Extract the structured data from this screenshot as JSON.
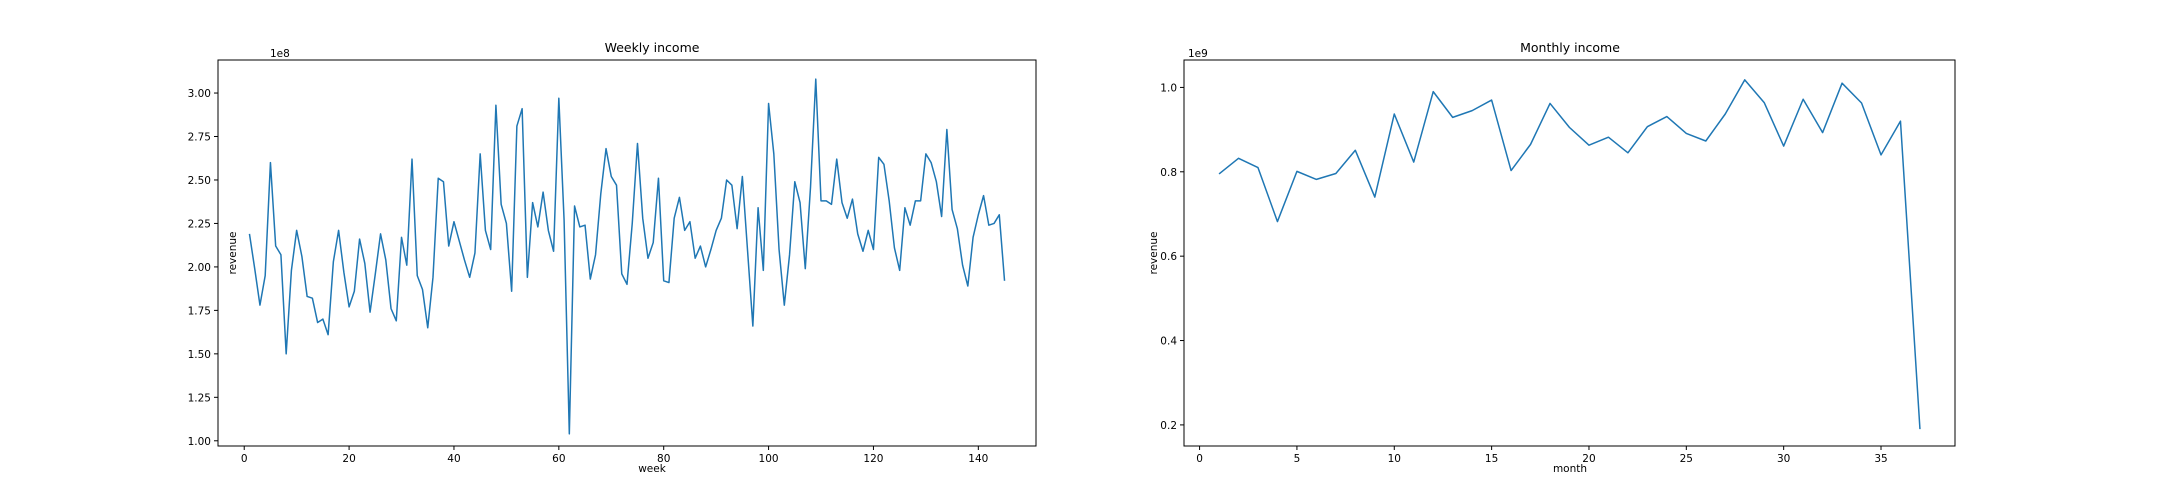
{
  "chart_data": [
    {
      "type": "line",
      "title": "Weekly income",
      "xlabel": "week",
      "ylabel": "revenue",
      "y_offset_label": "1e8",
      "xlim": [
        -5,
        151
      ],
      "ylim": [
        0.97,
        3.19
      ],
      "x_ticks": [
        0,
        20,
        40,
        60,
        80,
        100,
        120,
        140
      ],
      "x_tick_labels": [
        "0",
        "20",
        "40",
        "60",
        "80",
        "100",
        "120",
        "140"
      ],
      "y_ticks": [
        1.0,
        1.25,
        1.5,
        1.75,
        2.0,
        2.25,
        2.5,
        2.75,
        3.0
      ],
      "y_tick_labels": [
        "1.00",
        "1.25",
        "1.50",
        "1.75",
        "2.00",
        "2.25",
        "2.50",
        "2.75",
        "3.00"
      ],
      "grid": false,
      "line_color": "#1f77b4",
      "series": [
        {
          "x": [
            1,
            2,
            3,
            4,
            5,
            6,
            7,
            8,
            9,
            10,
            11,
            12,
            13,
            14,
            15,
            16,
            17,
            18,
            19,
            20,
            21,
            22,
            23,
            24,
            25,
            26,
            27,
            28,
            29,
            30,
            31,
            32,
            33,
            34,
            35,
            36,
            37,
            38,
            39,
            40,
            41,
            42,
            43,
            44,
            45,
            46,
            47,
            48,
            49,
            50,
            51,
            52,
            53,
            54,
            55,
            56,
            57,
            58,
            59,
            60,
            61,
            62,
            63,
            64,
            65,
            66,
            67,
            68,
            69,
            70,
            71,
            72,
            73,
            74,
            75,
            76,
            77,
            78,
            79,
            80,
            81,
            82,
            83,
            84,
            85,
            86,
            87,
            88,
            89,
            90,
            91,
            92,
            93,
            94,
            95,
            96,
            97,
            98,
            99,
            100,
            101,
            102,
            103,
            104,
            105,
            106,
            107,
            108,
            109,
            110,
            111,
            112,
            113,
            114,
            115,
            116,
            117,
            118,
            119,
            120,
            121,
            122,
            123,
            124,
            125,
            126,
            127,
            128,
            129,
            130,
            131,
            132,
            133,
            134,
            135,
            136,
            137,
            138,
            139,
            140,
            141,
            142,
            143,
            144,
            145
          ],
          "y": [
            2.19,
            1.99,
            1.78,
            1.95,
            2.6,
            2.12,
            2.07,
            1.5,
            1.98,
            2.21,
            2.06,
            1.83,
            1.82,
            1.68,
            1.7,
            1.61,
            2.03,
            2.21,
            1.97,
            1.77,
            1.86,
            2.16,
            2.02,
            1.74,
            1.96,
            2.19,
            2.04,
            1.76,
            1.69,
            2.17,
            2.01,
            2.62,
            1.95,
            1.87,
            1.65,
            1.94,
            2.51,
            2.49,
            2.12,
            2.26,
            2.15,
            2.04,
            1.94,
            2.08,
            2.65,
            2.21,
            2.1,
            2.93,
            2.36,
            2.25,
            1.86,
            2.81,
            2.91,
            1.94,
            2.37,
            2.23,
            2.43,
            2.21,
            2.09,
            2.97,
            2.27,
            1.04,
            2.35,
            2.23,
            2.24,
            1.93,
            2.07,
            2.42,
            2.68,
            2.52,
            2.47,
            1.96,
            1.9,
            2.25,
            2.71,
            2.28,
            2.05,
            2.14,
            2.51,
            1.92,
            1.91,
            2.28,
            2.4,
            2.21,
            2.26,
            2.05,
            2.12,
            2.0,
            2.1,
            2.21,
            2.28,
            2.5,
            2.47,
            2.22,
            2.52,
            2.09,
            1.66,
            2.34,
            1.98,
            2.94,
            2.65,
            2.1,
            1.78,
            2.07,
            2.49,
            2.37,
            1.99,
            2.46,
            3.08,
            2.38,
            2.38,
            2.36,
            2.62,
            2.37,
            2.28,
            2.39,
            2.19,
            2.09,
            2.21,
            2.1,
            2.63,
            2.59,
            2.38,
            2.11,
            1.98,
            2.34,
            2.24,
            2.38,
            2.38,
            2.65,
            2.6,
            2.49,
            2.29,
            2.79,
            2.33,
            2.22,
            2.01,
            1.89,
            2.17,
            2.3,
            2.41,
            2.24,
            2.25,
            2.3,
            1.92
          ]
        }
      ]
    },
    {
      "type": "line",
      "title": "Monthly income",
      "xlabel": "month",
      "ylabel": "revenue",
      "y_offset_label": "1e9",
      "xlim": [
        -0.8,
        38.8
      ],
      "ylim": [
        0.15,
        1.065
      ],
      "x_ticks": [
        0,
        5,
        10,
        15,
        20,
        25,
        30,
        35
      ],
      "x_tick_labels": [
        "0",
        "5",
        "10",
        "15",
        "20",
        "25",
        "30",
        "35"
      ],
      "y_ticks": [
        0.2,
        0.4,
        0.6,
        0.8,
        1.0
      ],
      "y_tick_labels": [
        "0.2",
        "0.4",
        "0.6",
        "0.8",
        "1.0"
      ],
      "grid": false,
      "line_color": "#1f77b4",
      "series": [
        {
          "x": [
            1,
            2,
            3,
            4,
            5,
            6,
            7,
            8,
            9,
            10,
            11,
            12,
            13,
            14,
            15,
            16,
            17,
            18,
            19,
            20,
            21,
            22,
            23,
            24,
            25,
            26,
            27,
            28,
            29,
            30,
            31,
            32,
            33,
            34,
            35,
            36,
            37
          ],
          "y": [
            0.795,
            0.832,
            0.81,
            0.682,
            0.801,
            0.782,
            0.796,
            0.851,
            0.74,
            0.937,
            0.823,
            0.99,
            0.929,
            0.945,
            0.97,
            0.803,
            0.865,
            0.962,
            0.905,
            0.863,
            0.882,
            0.845,
            0.907,
            0.931,
            0.891,
            0.873,
            0.937,
            1.018,
            0.964,
            0.861,
            0.972,
            0.893,
            1.01,
            0.963,
            0.84,
            0.92,
            0.19
          ]
        }
      ]
    }
  ]
}
